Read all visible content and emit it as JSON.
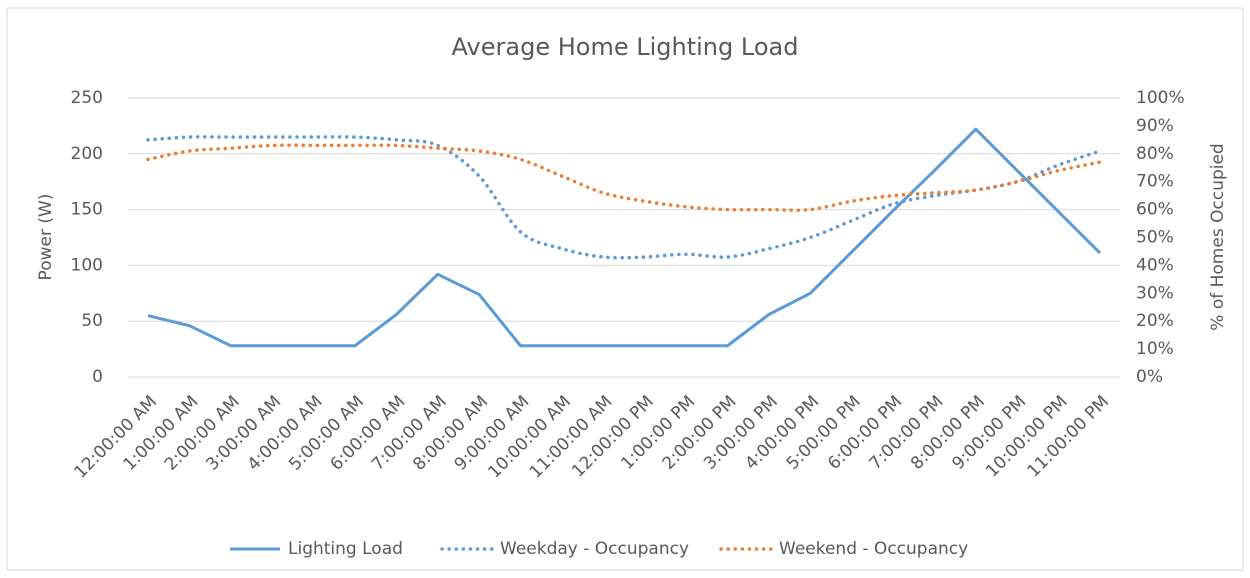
{
  "chart_data": {
    "type": "line",
    "title": "Average Home Lighting Load",
    "ylabel": "Power (W)",
    "y2label": "% of Homes Occupied",
    "categories": [
      "12:00:00 AM",
      "1:00:00 AM",
      "2:00:00 AM",
      "3:00:00 AM",
      "4:00:00 AM",
      "5:00:00 AM",
      "6:00:00 AM",
      "7:00:00 AM",
      "8:00:00 AM",
      "9:00:00 AM",
      "10:00:00 AM",
      "11:00:00 AM",
      "12:00:00 PM",
      "1:00:00 PM",
      "2:00:00 PM",
      "3:00:00 PM",
      "4:00:00 PM",
      "5:00:00 PM",
      "6:00:00 PM",
      "7:00:00 PM",
      "8:00:00 PM",
      "9:00:00 PM",
      "10:00:00 PM",
      "11:00:00 PM"
    ],
    "series": [
      {
        "name": "Lighting Load",
        "color": "#5b9bd5",
        "line_style": "solid",
        "axis": "y",
        "values": [
          55,
          46,
          28,
          28,
          28,
          28,
          56,
          92,
          74,
          28,
          28,
          28,
          28,
          28,
          28,
          56,
          75,
          112,
          149,
          185,
          222,
          185,
          148,
          111
        ]
      },
      {
        "name": "Weekday - Occupancy",
        "color": "#5b9bd5",
        "line_style": "dotted",
        "axis": "y2",
        "values": [
          85,
          86,
          86,
          86,
          86,
          86,
          85,
          83,
          72,
          52,
          46,
          43,
          43,
          44,
          43,
          46,
          50,
          56,
          62,
          65,
          67,
          70,
          76,
          81
        ]
      },
      {
        "name": "Weekend - Occupancy",
        "color": "#ed7d31",
        "line_style": "dotted",
        "axis": "y2",
        "values": [
          78,
          81,
          82,
          83,
          83,
          83,
          83,
          82,
          81,
          78,
          72,
          66,
          63,
          61,
          60,
          60,
          60,
          63,
          65,
          66,
          67,
          70,
          74,
          77
        ]
      }
    ],
    "ylim": [
      0,
      250
    ],
    "yticks": [
      0,
      50,
      100,
      150,
      200,
      250
    ],
    "y2lim": [
      0,
      100
    ],
    "y2ticks": [
      {
        "value": 0,
        "label": "0%"
      },
      {
        "value": 10,
        "label": "10%"
      },
      {
        "value": 20,
        "label": "20%"
      },
      {
        "value": 30,
        "label": "30%"
      },
      {
        "value": 40,
        "label": "40%"
      },
      {
        "value": 50,
        "label": "50%"
      },
      {
        "value": 60,
        "label": "60%"
      },
      {
        "value": 70,
        "label": "70%"
      },
      {
        "value": 80,
        "label": "80%"
      },
      {
        "value": 90,
        "label": "90%"
      },
      {
        "value": 100,
        "label": "100%"
      }
    ],
    "grid": true,
    "legend": "bottom"
  }
}
